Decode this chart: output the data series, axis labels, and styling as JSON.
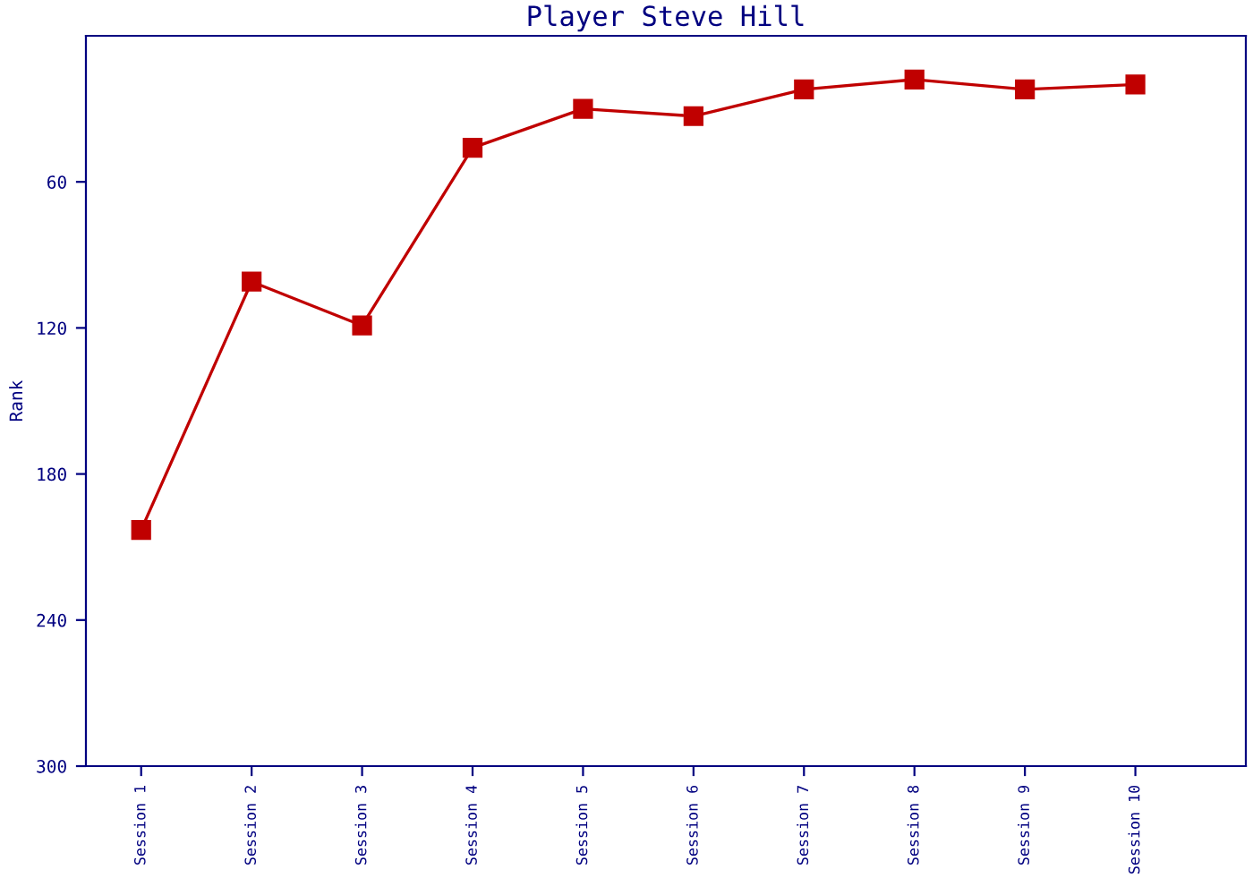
{
  "chart_data": {
    "type": "line",
    "title": "Player Steve Hill",
    "ylabel": "Rank",
    "categories": [
      "Session 1",
      "Session 2",
      "Session 3",
      "Session 4",
      "Session 5",
      "Session 6",
      "Session 7",
      "Session 8",
      "Session 9",
      "Session 10"
    ],
    "series": [
      {
        "color": "#c00000",
        "values": [
          203,
          101,
          119,
          46,
          30,
          33,
          22,
          18,
          22,
          20
        ]
      }
    ],
    "ylim": [
      300,
      0
    ],
    "yticks": [
      60,
      120,
      180,
      240,
      300
    ],
    "marker": "square",
    "line_style": "solid",
    "grid": false,
    "legend": false
  }
}
